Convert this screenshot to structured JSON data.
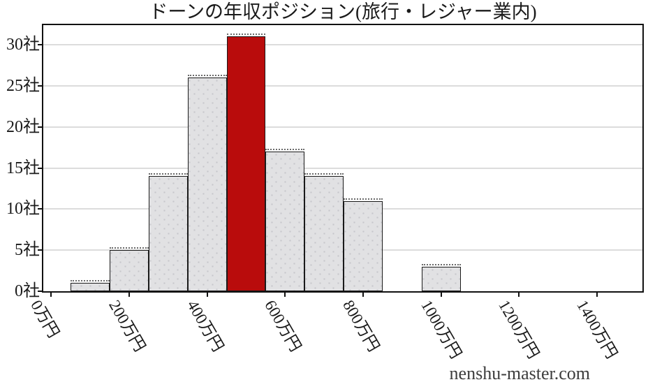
{
  "watermark": "nenshu-master.com",
  "chart_data": {
    "type": "bar",
    "subtype": "histogram",
    "title": "ドーンの年収ポジション(旅行・レジャー業内)",
    "xlabel": "",
    "ylabel": "",
    "x_unit": "万円",
    "y_unit": "社",
    "bin_width": 100,
    "bars": [
      {
        "x_center": 100,
        "value": 1,
        "highlight": false
      },
      {
        "x_center": 200,
        "value": 5,
        "highlight": false
      },
      {
        "x_center": 300,
        "value": 14,
        "highlight": false
      },
      {
        "x_center": 400,
        "value": 26,
        "highlight": false
      },
      {
        "x_center": 500,
        "value": 31,
        "highlight": true
      },
      {
        "x_center": 600,
        "value": 17,
        "highlight": false
      },
      {
        "x_center": 700,
        "value": 14,
        "highlight": false
      },
      {
        "x_center": 800,
        "value": 11,
        "highlight": false
      },
      {
        "x_center": 1000,
        "value": 3,
        "highlight": false
      }
    ],
    "x_ticks": [
      {
        "value": 0,
        "label": "0万円"
      },
      {
        "value": 200,
        "label": "200万円"
      },
      {
        "value": 400,
        "label": "400万円"
      },
      {
        "value": 600,
        "label": "600万円"
      },
      {
        "value": 800,
        "label": "800万円"
      },
      {
        "value": 1000,
        "label": "1000万円"
      },
      {
        "value": 1200,
        "label": "1200万円"
      },
      {
        "value": 1400,
        "label": "1400万円"
      }
    ],
    "y_ticks": [
      {
        "value": 0,
        "label": "0社"
      },
      {
        "value": 5,
        "label": "5社"
      },
      {
        "value": 10,
        "label": "10社"
      },
      {
        "value": 15,
        "label": "15社"
      },
      {
        "value": 20,
        "label": "20社"
      },
      {
        "value": 25,
        "label": "25社"
      },
      {
        "value": 30,
        "label": "30社"
      }
    ],
    "xlim": [
      -20,
      1516
    ],
    "ylim": [
      0,
      32.4
    ],
    "grid": "horizontal-only",
    "legend": "none",
    "x_tick_label_rotation_deg": 60,
    "colors": {
      "bar_fill": "#e1e1e3",
      "bar_dots": "#c7c7cb",
      "bar_edge": "#1a1a1a",
      "highlight_fill": "#b90c0c",
      "grid_line": "#dcdcdc",
      "axis": "#111111",
      "text": "#1a1a1a",
      "watermark_text": "#3d3d3d"
    }
  }
}
